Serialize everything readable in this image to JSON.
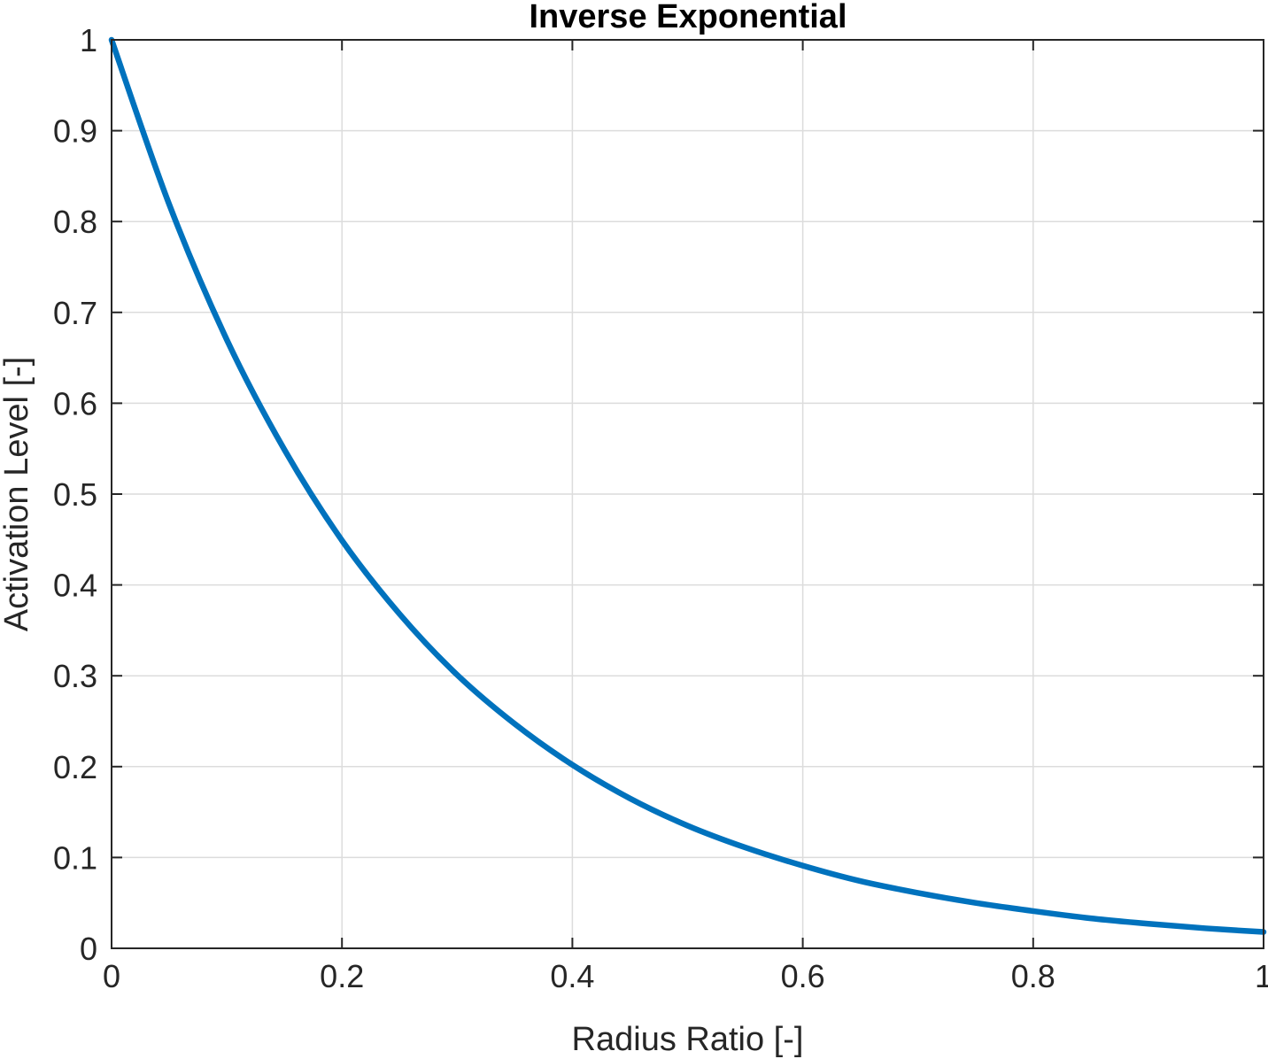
{
  "chart_data": {
    "type": "line",
    "title": "Inverse Exponential",
    "xlabel": "Radius Ratio [-]",
    "ylabel": "Activation Level [-]",
    "xlim": [
      0,
      1
    ],
    "ylim": [
      0,
      1
    ],
    "xticks": [
      0,
      0.2,
      0.4,
      0.6,
      0.8,
      1
    ],
    "yticks": [
      0,
      0.1,
      0.2,
      0.3,
      0.4,
      0.5,
      0.6,
      0.7,
      0.8,
      0.9,
      1
    ],
    "xtick_labels": [
      "0",
      "0.2",
      "0.4",
      "0.6",
      "0.8",
      "1"
    ],
    "ytick_labels": [
      "0",
      "0.1",
      "0.2",
      "0.3",
      "0.4",
      "0.5",
      "0.6",
      "0.7",
      "0.8",
      "0.9",
      "1"
    ],
    "grid": true,
    "series": [
      {
        "color": "#0072BD",
        "x": [
          0,
          0.05,
          0.1,
          0.15,
          0.2,
          0.25,
          0.3,
          0.35,
          0.4,
          0.45,
          0.5,
          0.55,
          0.6,
          0.65,
          0.7,
          0.75,
          0.8,
          0.85,
          0.9,
          0.95,
          1
        ],
        "y": [
          1,
          0.819,
          0.67,
          0.549,
          0.449,
          0.368,
          0.301,
          0.247,
          0.202,
          0.165,
          0.135,
          0.111,
          0.091,
          0.074,
          0.061,
          0.05,
          0.041,
          0.033,
          0.027,
          0.022,
          0.018
        ]
      }
    ]
  }
}
